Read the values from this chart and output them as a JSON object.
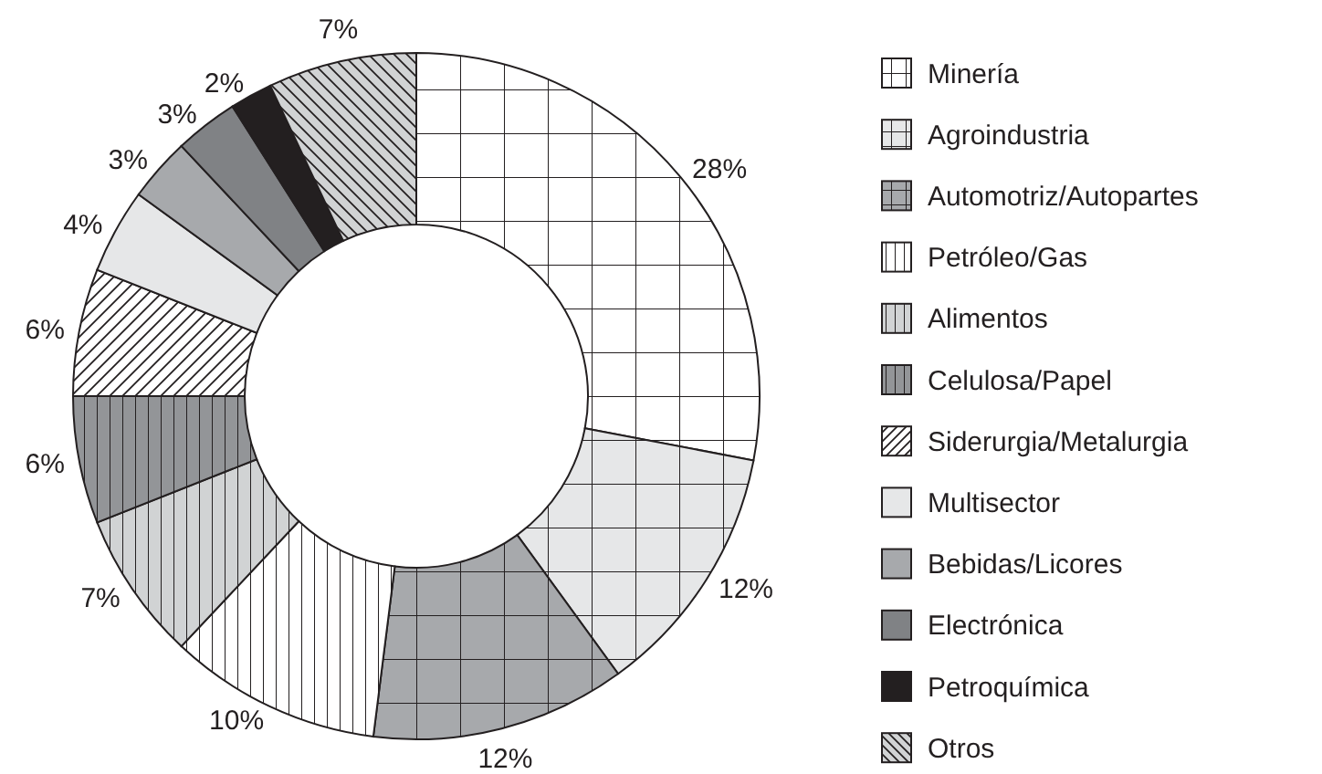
{
  "chart_data": {
    "type": "donut",
    "categories": [
      "Minería",
      "Agroindustria",
      "Automotriz/Autopartes",
      "Petróleo/Gas",
      "Alimentos",
      "Celulosa/Papel",
      "Siderurgia/Metalurgia",
      "Multisector",
      "Bebidas/Licores",
      "Electrónica",
      "Petroquímica",
      "Otros"
    ],
    "values": [
      28,
      12,
      12,
      10,
      7,
      6,
      6,
      4,
      3,
      3,
      2,
      7
    ],
    "value_labels": [
      "28%",
      "12%",
      "12%",
      "10%",
      "7%",
      "6%",
      "6%",
      "4%",
      "3%",
      "3%",
      "2%",
      "7%"
    ],
    "colors": [
      "#ffffff",
      "#e6e7e8",
      "#a7a9ac",
      "#ffffff",
      "#d1d3d4",
      "#939598",
      "#ffffff",
      "#e6e7e8",
      "#a7a9ac",
      "#808285",
      "#231f20",
      "#d1d3d4"
    ],
    "legend": "right"
  }
}
